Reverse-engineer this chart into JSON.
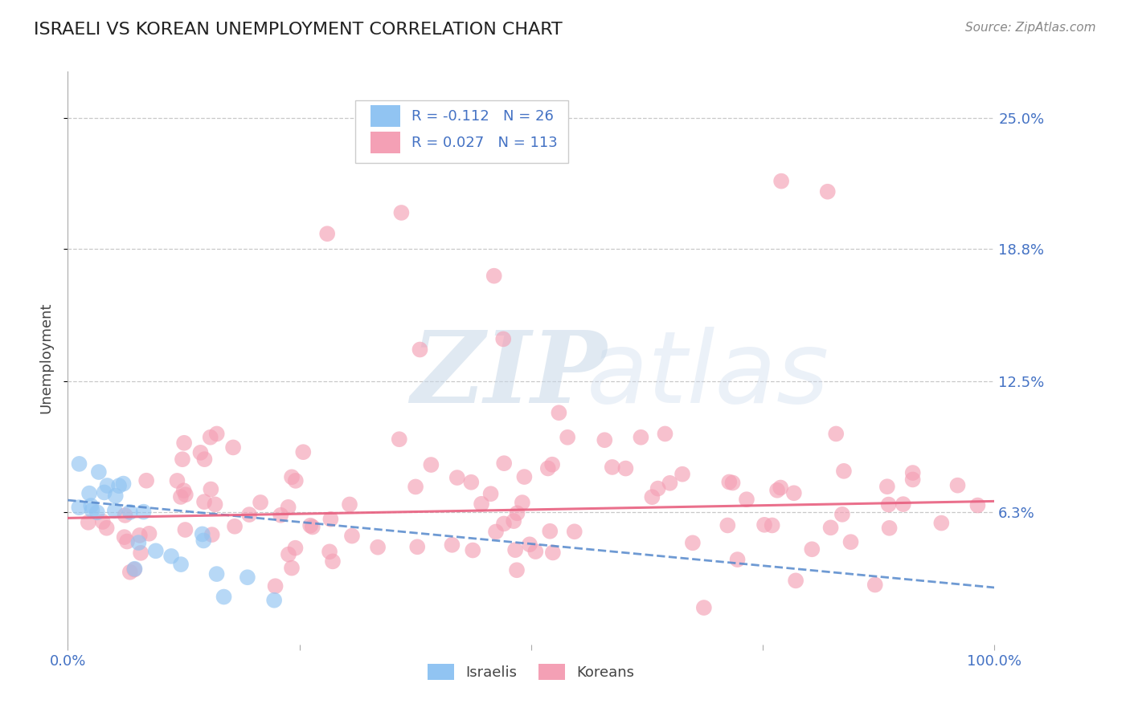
{
  "title": "ISRAELI VS KOREAN UNEMPLOYMENT CORRELATION CHART",
  "source": "Source: ZipAtlas.com",
  "ylabel": "Unemployment",
  "xlim": [
    0,
    1.0
  ],
  "ylim": [
    0.0,
    0.272
  ],
  "yticks": [
    0.063,
    0.125,
    0.188,
    0.25
  ],
  "ytick_labels": [
    "6.3%",
    "12.5%",
    "18.8%",
    "25.0%"
  ],
  "israeli_R": -0.112,
  "israeli_N": 26,
  "korean_R": 0.027,
  "korean_N": 113,
  "israeli_color": "#91c4f2",
  "korean_color": "#f4a0b5",
  "israeli_line_color": "#5588cc",
  "korean_line_color": "#e86080",
  "watermark_zip": "ZIP",
  "watermark_atlas": "atlas",
  "background_color": "#ffffff",
  "grid_color": "#bbbbbb",
  "legend_r_color": "#4472c4",
  "axis_label_color": "#4472c4",
  "israeli_trend_start_y": 0.0685,
  "israeli_trend_end_y": 0.027,
  "korean_trend_start_y": 0.06,
  "korean_trend_end_y": 0.068
}
